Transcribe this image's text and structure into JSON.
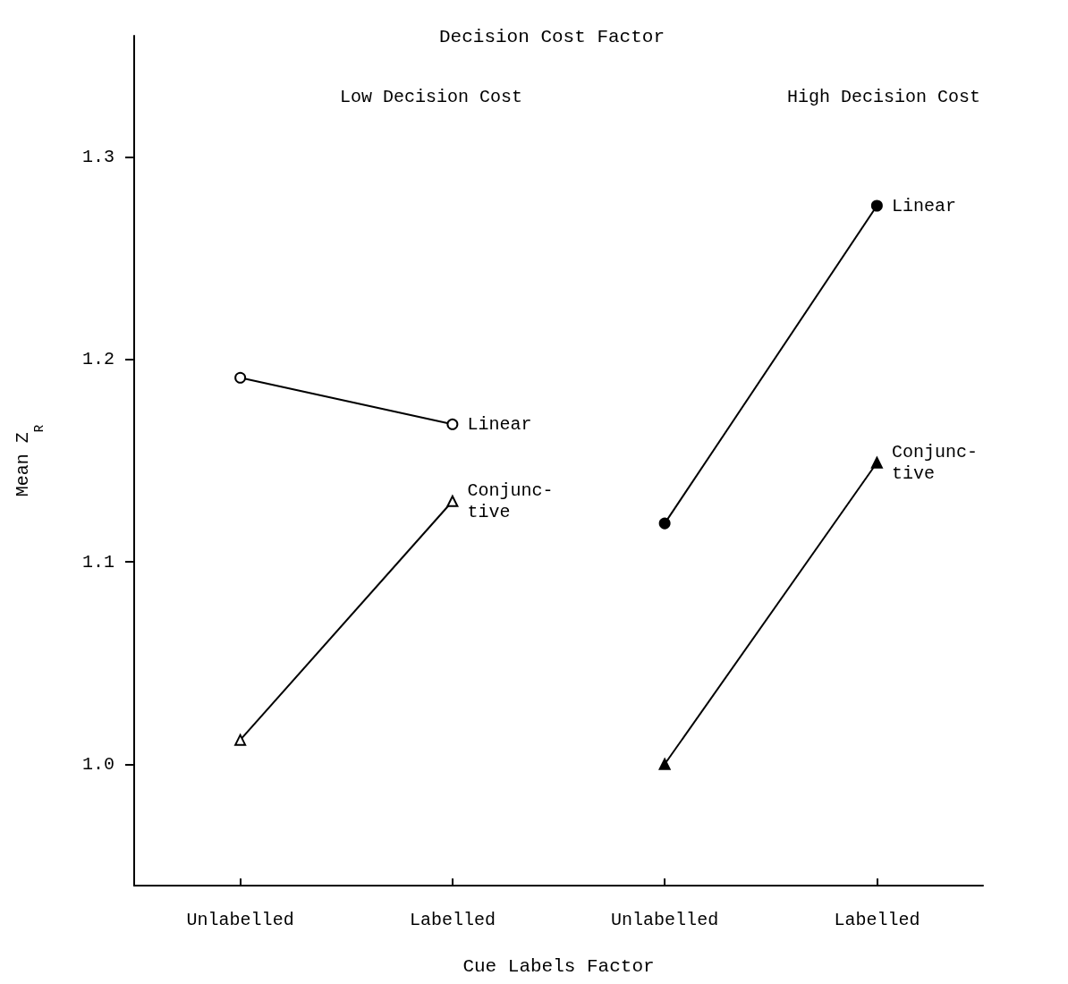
{
  "chart_data": {
    "type": "line",
    "title": "Decision Cost Factor",
    "annotations": [
      "Low Decision Cost",
      "High Decision Cost"
    ],
    "xlabel": "Cue Labels Factor",
    "ylabel": "Mean Z$_{R}$",
    "categories": [
      "Unlabelled",
      "Labelled",
      "Unlabelled",
      "Labelled"
    ],
    "series": [
      {
        "name": "Linear",
        "color": "#000000",
        "colors": [
          "#ffffff",
          "#ffffff",
          null,
          null
        ],
        "marker": "circle",
        "values": [
          1.191,
          1.168,
          null,
          null
        ]
      },
      {
        "name": "Conjunc-\ntive",
        "color": "#000000",
        "colors": [
          "#ffffff",
          "#ffffff",
          null,
          null
        ],
        "marker": "triangle",
        "values": [
          1.012,
          1.13,
          null,
          null
        ]
      },
      {
        "name": "Linear",
        "color": "#000000",
        "colors": [
          null,
          null,
          "#000000",
          "#000000"
        ],
        "marker": "circle",
        "values": [
          null,
          null,
          1.119,
          1.276
        ]
      },
      {
        "name": "Conjunc-\ntive",
        "color": "#000000",
        "colors": [
          null,
          null,
          "#000000",
          "#000000"
        ],
        "marker": "triangle",
        "values": [
          null,
          null,
          1.0,
          1.149
        ]
      }
    ],
    "ylim": [
      0.94,
      1.36
    ],
    "yticks": [
      {
        "value": 1.0,
        "label": "1.0"
      },
      1.1,
      1.2,
      1.3
    ],
    "grid": false,
    "legend": false
  }
}
